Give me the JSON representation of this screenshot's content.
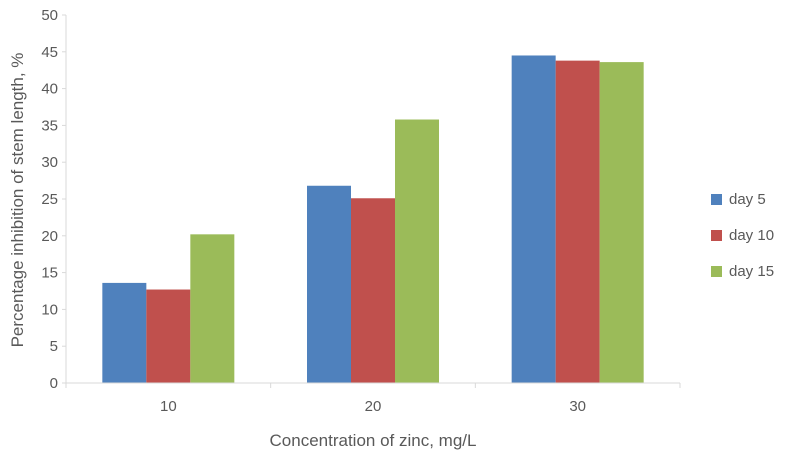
{
  "chart_data": {
    "type": "bar",
    "title": "",
    "xlabel": "Concentration of zinc, mg/L",
    "ylabel": "Percentage inhibition of stem length, %",
    "categories": [
      "10",
      "20",
      "30"
    ],
    "ylim": [
      0,
      50
    ],
    "yticks": [
      0,
      5,
      10,
      15,
      20,
      25,
      30,
      35,
      40,
      45,
      50
    ],
    "grid": false,
    "legend_position": "right",
    "series": [
      {
        "name": "day 5",
        "color": "#4f81bd",
        "values": [
          13.6,
          26.8,
          44.5
        ]
      },
      {
        "name": "day 10",
        "color": "#c0504d",
        "values": [
          12.7,
          25.1,
          43.8
        ]
      },
      {
        "name": "day 15",
        "color": "#9bbb59",
        "values": [
          20.2,
          35.8,
          43.6
        ]
      }
    ]
  }
}
